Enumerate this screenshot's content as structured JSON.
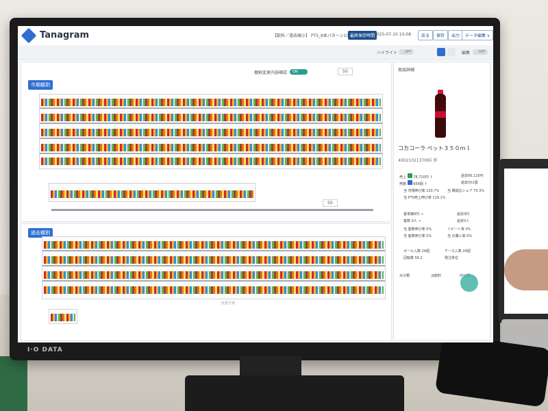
{
  "app": {
    "name": "Tanagram"
  },
  "header": {
    "breadcrumb": "【飲料／過去縮小】 PTS_8本パターン10",
    "badge": "最終保存時間",
    "saved_at": "2025-07-10 10:08",
    "buttons": [
      "戻る",
      "保存",
      "出力",
      "データ編集 ∨"
    ]
  },
  "subbar": {
    "highlight_label": "ハイライト",
    "highlight_state": "OFF",
    "edit_label": "編集",
    "edit_state": "OFF"
  },
  "current": {
    "title": "今期棚割",
    "change_label": "棚割変更内容確認",
    "change_state": "ON",
    "zoom": "50"
  },
  "past": {
    "title": "過去棚割",
    "zoom": "50",
    "hint": "仮置き場"
  },
  "detail": {
    "panel_title": "商品詳細",
    "product_name": "コカコーラ ペット３５０ｍｌ",
    "jan": "4902102137065 歩",
    "sales_label": "売上",
    "sales_value": "78,720円 ↑",
    "sales_past": "過去66,120円",
    "qty_label": "売数",
    "qty_value": "656個 ↑",
    "qty_past": "過去551個",
    "m1": "当 市場伸び率 103.7%",
    "m2": "当 構成比シェア 70.3%",
    "m3": "当 PTS売上伸び率 119.1%",
    "cust_label": "客単価0円 →",
    "cust_past": "過去0円",
    "count_label": "客数 0人 →",
    "count_past": "過去0人",
    "r1": "当 客数伸び率 0%",
    "r2": "リピート率 0%",
    "r3": "当 客数伸び率 0%",
    "r4": "当 の購入率 0%",
    "i1": "ボール入数 24個",
    "i2": "ケース入数 24個",
    "i3": "回転数 56.2",
    "i4": "発注単位",
    "tab1": "大分類",
    "tab2": "淡飲料",
    "tab3": "中分類"
  },
  "monitor_brand": "I·O DATA",
  "colors": {
    "accent": "#2f6fd0",
    "toggle_on": "#2a9d8f",
    "sales_tag": "#2e9e4f",
    "qty_tag": "#2f6fd0"
  }
}
